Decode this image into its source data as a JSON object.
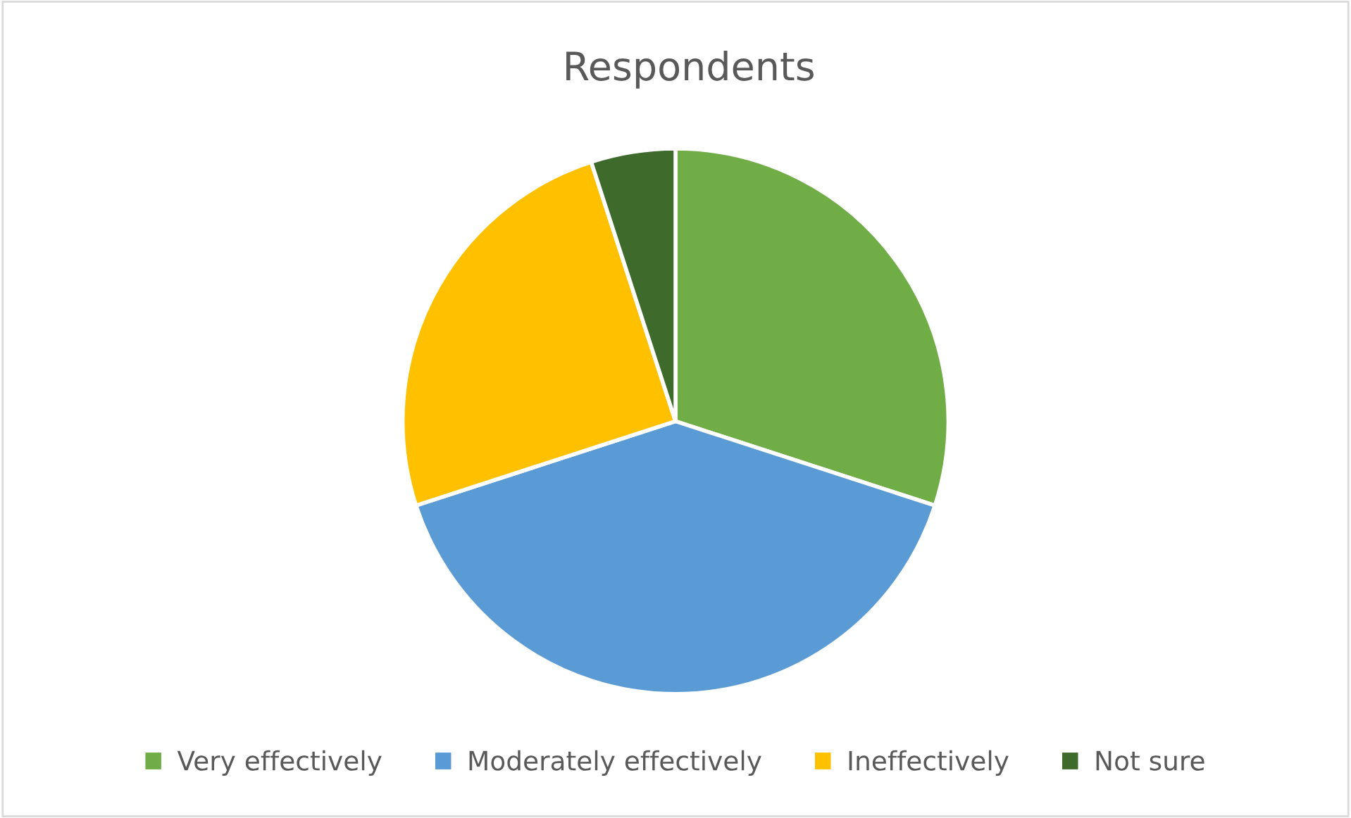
{
  "chart_data": {
    "type": "pie",
    "title": "Respondents",
    "categories": [
      "Very effectively",
      "Moderately effectively",
      "Ineffectively",
      "Not sure"
    ],
    "values": [
      30,
      40,
      25,
      5
    ],
    "colors": [
      "#70ad47",
      "#5b9bd5",
      "#ffc000",
      "#3e6b2b"
    ],
    "legend": "bottom"
  }
}
